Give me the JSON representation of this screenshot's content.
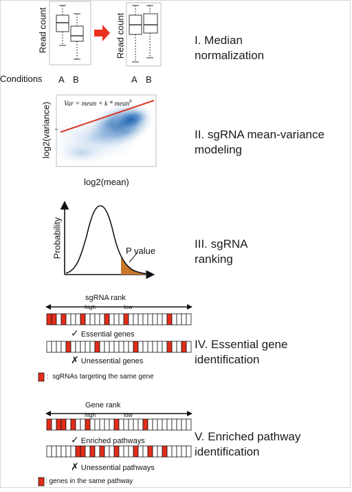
{
  "steps": [
    {
      "numeral": "I.",
      "line1": "I. Median",
      "line2": "normalization"
    },
    {
      "numeral": "II.",
      "line1": "II. sgRNA mean-variance",
      "line2": "modeling"
    },
    {
      "numeral": "III.",
      "line1": "III. sgRNA",
      "line2": "ranking"
    },
    {
      "numeral": "IV.",
      "line1": "IV. Essential gene",
      "line2": "identification"
    },
    {
      "numeral": "V.",
      "line1": "V. Enriched pathway",
      "line2": "identification"
    }
  ],
  "panel1": {
    "y_label": "Read count",
    "conditions_label": "Conditions",
    "cond_a": "A",
    "cond_b": "B",
    "arrow_color": "#e8321e"
  },
  "panel2": {
    "formula": "Var = mean + k * mean^b",
    "formula_base": "Var = mean + k * mean",
    "formula_exp": "b",
    "y_label": "log2(variance)",
    "x_label": "log2(mean)",
    "fit_color": "#d93a2b",
    "density_color": "#2f6fb6"
  },
  "panel3": {
    "y_label": "Probability",
    "p_label": "P value",
    "tail_color": "#c8782a"
  },
  "panel4": {
    "rank_label": "sgRNA rank",
    "high_label": "high",
    "low_label": "low",
    "row1_caption": "Essential genes",
    "row2_caption": "Unessential genes",
    "row1_marks": [
      0,
      1,
      3,
      7,
      12,
      16,
      25
    ],
    "row2_marks": [
      4,
      10,
      18,
      25,
      28
    ],
    "cells": 30,
    "legend_text": "sgRNAs targeting the same gene",
    "mark_color": "#e12d1a",
    "check": "✓",
    "cross": "✗"
  },
  "panel5": {
    "rank_label": "Gene rank",
    "high_label": "high",
    "low_label": "low",
    "row1_caption": "Enriched pathways",
    "row2_caption": "Unessential pathways",
    "row1_marks": [
      0,
      2,
      3,
      5,
      8,
      14,
      20
    ],
    "row2_marks": [
      6,
      7,
      9,
      11,
      14,
      18,
      21,
      24
    ],
    "cells": 30,
    "legend_text": "genes in the same pathway",
    "mark_color": "#e12d1a",
    "check": "✓",
    "cross": "✗"
  }
}
